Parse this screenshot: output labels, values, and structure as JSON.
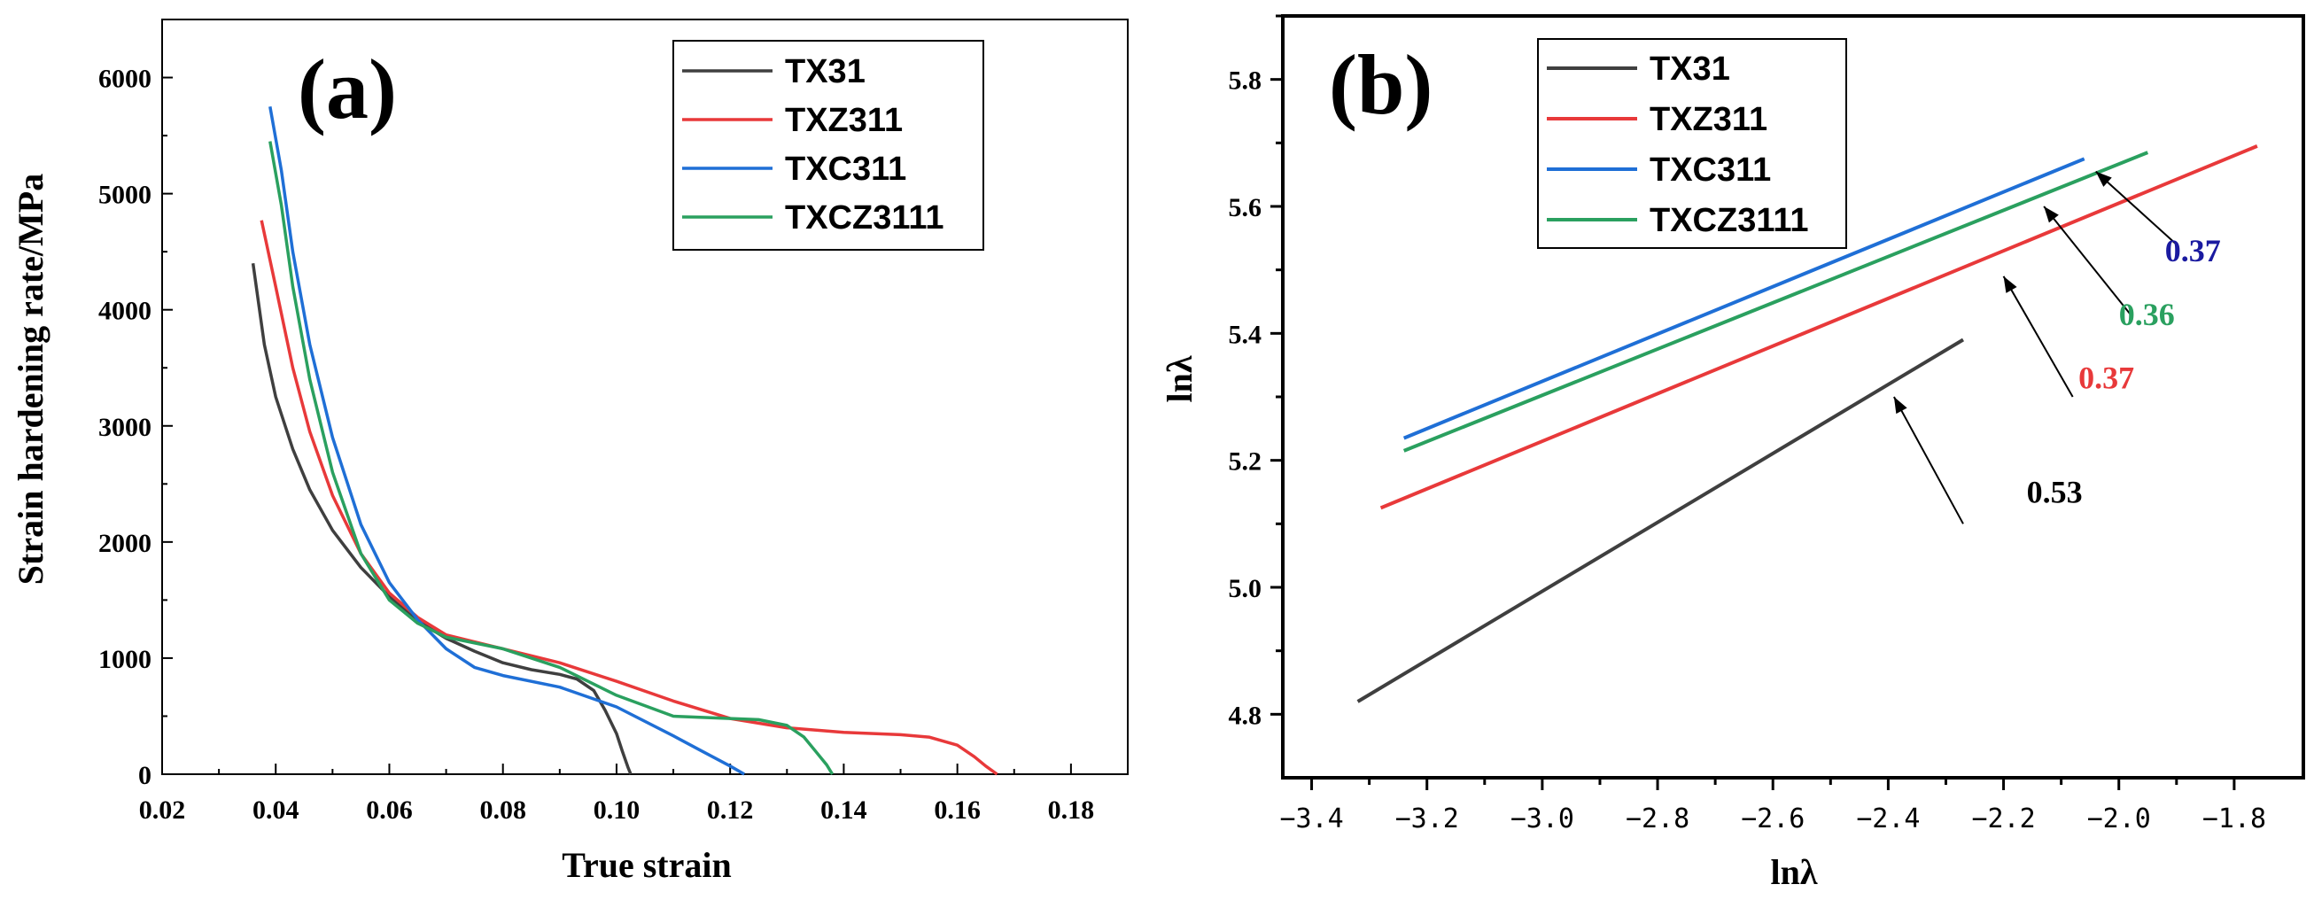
{
  "chart_data": [
    {
      "panel": "(a)",
      "type": "line",
      "xlabel": "True strain",
      "ylabel": "Strain hardening rate/MPa",
      "xlim": [
        0.02,
        0.19
      ],
      "ylim": [
        0,
        6500
      ],
      "xticks": [
        "0.02",
        "0.04",
        "0.06",
        "0.08",
        "0.10",
        "0.12",
        "0.14",
        "0.16",
        "0.18"
      ],
      "yticks": [
        "0",
        "1000",
        "2000",
        "3000",
        "4000",
        "5000",
        "6000"
      ],
      "legend_position": "top-right",
      "series": [
        {
          "name": "TX31",
          "color": "#3f3f3f",
          "x": [
            0.036,
            0.038,
            0.04,
            0.043,
            0.046,
            0.05,
            0.055,
            0.06,
            0.065,
            0.07,
            0.075,
            0.08,
            0.085,
            0.09,
            0.093,
            0.096,
            0.098,
            0.1,
            0.101,
            0.102,
            0.1025
          ],
          "y": [
            4400,
            3700,
            3250,
            2800,
            2450,
            2100,
            1780,
            1530,
            1320,
            1170,
            1060,
            960,
            900,
            860,
            820,
            720,
            550,
            350,
            200,
            60,
            0
          ]
        },
        {
          "name": "TXZ311",
          "color": "#e8393a",
          "x": [
            0.0375,
            0.04,
            0.043,
            0.046,
            0.05,
            0.055,
            0.06,
            0.065,
            0.07,
            0.08,
            0.09,
            0.1,
            0.11,
            0.12,
            0.13,
            0.14,
            0.15,
            0.155,
            0.16,
            0.163,
            0.165,
            0.167
          ],
          "y": [
            4770,
            4200,
            3500,
            2950,
            2400,
            1900,
            1560,
            1350,
            1200,
            1080,
            960,
            800,
            630,
            480,
            400,
            360,
            340,
            320,
            250,
            150,
            70,
            0
          ]
        },
        {
          "name": "TXC311",
          "color": "#1f6fd6",
          "x": [
            0.039,
            0.041,
            0.043,
            0.046,
            0.05,
            0.055,
            0.06,
            0.065,
            0.07,
            0.075,
            0.08,
            0.09,
            0.1,
            0.11,
            0.115,
            0.12,
            0.1225
          ],
          "y": [
            5750,
            5200,
            4500,
            3700,
            2900,
            2150,
            1650,
            1330,
            1080,
            920,
            850,
            750,
            580,
            330,
            200,
            70,
            0
          ]
        },
        {
          "name": "TXCZ3111",
          "color": "#2aa05f",
          "x": [
            0.039,
            0.041,
            0.043,
            0.046,
            0.05,
            0.055,
            0.06,
            0.065,
            0.07,
            0.08,
            0.09,
            0.1,
            0.11,
            0.12,
            0.125,
            0.13,
            0.133,
            0.135,
            0.137,
            0.138
          ],
          "y": [
            5450,
            4900,
            4200,
            3400,
            2600,
            1900,
            1500,
            1300,
            1180,
            1080,
            920,
            680,
            500,
            480,
            470,
            420,
            320,
            200,
            80,
            0
          ]
        }
      ],
      "annotations": []
    },
    {
      "panel": "(b)",
      "type": "line",
      "xlabel": "lnλ",
      "ylabel": "lnλ",
      "xlim": [
        -3.45,
        -1.68
      ],
      "ylim": [
        4.7,
        5.9
      ],
      "xticks": [
        "−3.4",
        "−3.2",
        "−3.0",
        "−2.8",
        "−2.6",
        "−2.4",
        "−2.2",
        "−2.0",
        "−1.8"
      ],
      "yticks": [
        "4.8",
        "5.0",
        "5.2",
        "5.4",
        "5.6",
        "5.8"
      ],
      "legend_position": "top-left",
      "series": [
        {
          "name": "TX31",
          "color": "#3f3f3f",
          "x": [
            -3.32,
            -2.27
          ],
          "y": [
            4.82,
            5.39
          ]
        },
        {
          "name": "TXZ311",
          "color": "#e8393a",
          "x": [
            -3.28,
            -1.76
          ],
          "y": [
            5.125,
            5.695
          ]
        },
        {
          "name": "TXC311",
          "color": "#1f6fd6",
          "x": [
            -3.24,
            -2.06
          ],
          "y": [
            5.235,
            5.675
          ]
        },
        {
          "name": "TXCZ3111",
          "color": "#2aa05f",
          "x": [
            -3.24,
            -1.95
          ],
          "y": [
            5.215,
            5.685
          ]
        }
      ],
      "annotations": [
        {
          "text": "0.53",
          "color": "#000000",
          "arrow_from": [
            -2.27,
            5.1
          ],
          "arrow_to": [
            -2.39,
            5.3
          ],
          "label_at": [
            -2.16,
            5.15
          ]
        },
        {
          "text": "0.37",
          "color": "#e8393a",
          "arrow_from": [
            -2.08,
            5.3
          ],
          "arrow_to": [
            -2.2,
            5.49
          ],
          "label_at": [
            -2.07,
            5.33
          ]
        },
        {
          "text": "0.36",
          "color": "#2aa05f",
          "arrow_from": [
            -1.98,
            5.43
          ],
          "arrow_to": [
            -2.13,
            5.6
          ],
          "label_at": [
            -2.0,
            5.43
          ]
        },
        {
          "text": "0.37",
          "color": "#1a1aa0",
          "arrow_from": [
            -1.9,
            5.54
          ],
          "arrow_to": [
            -2.04,
            5.655
          ],
          "label_at": [
            -1.92,
            5.53
          ]
        }
      ]
    }
  ]
}
